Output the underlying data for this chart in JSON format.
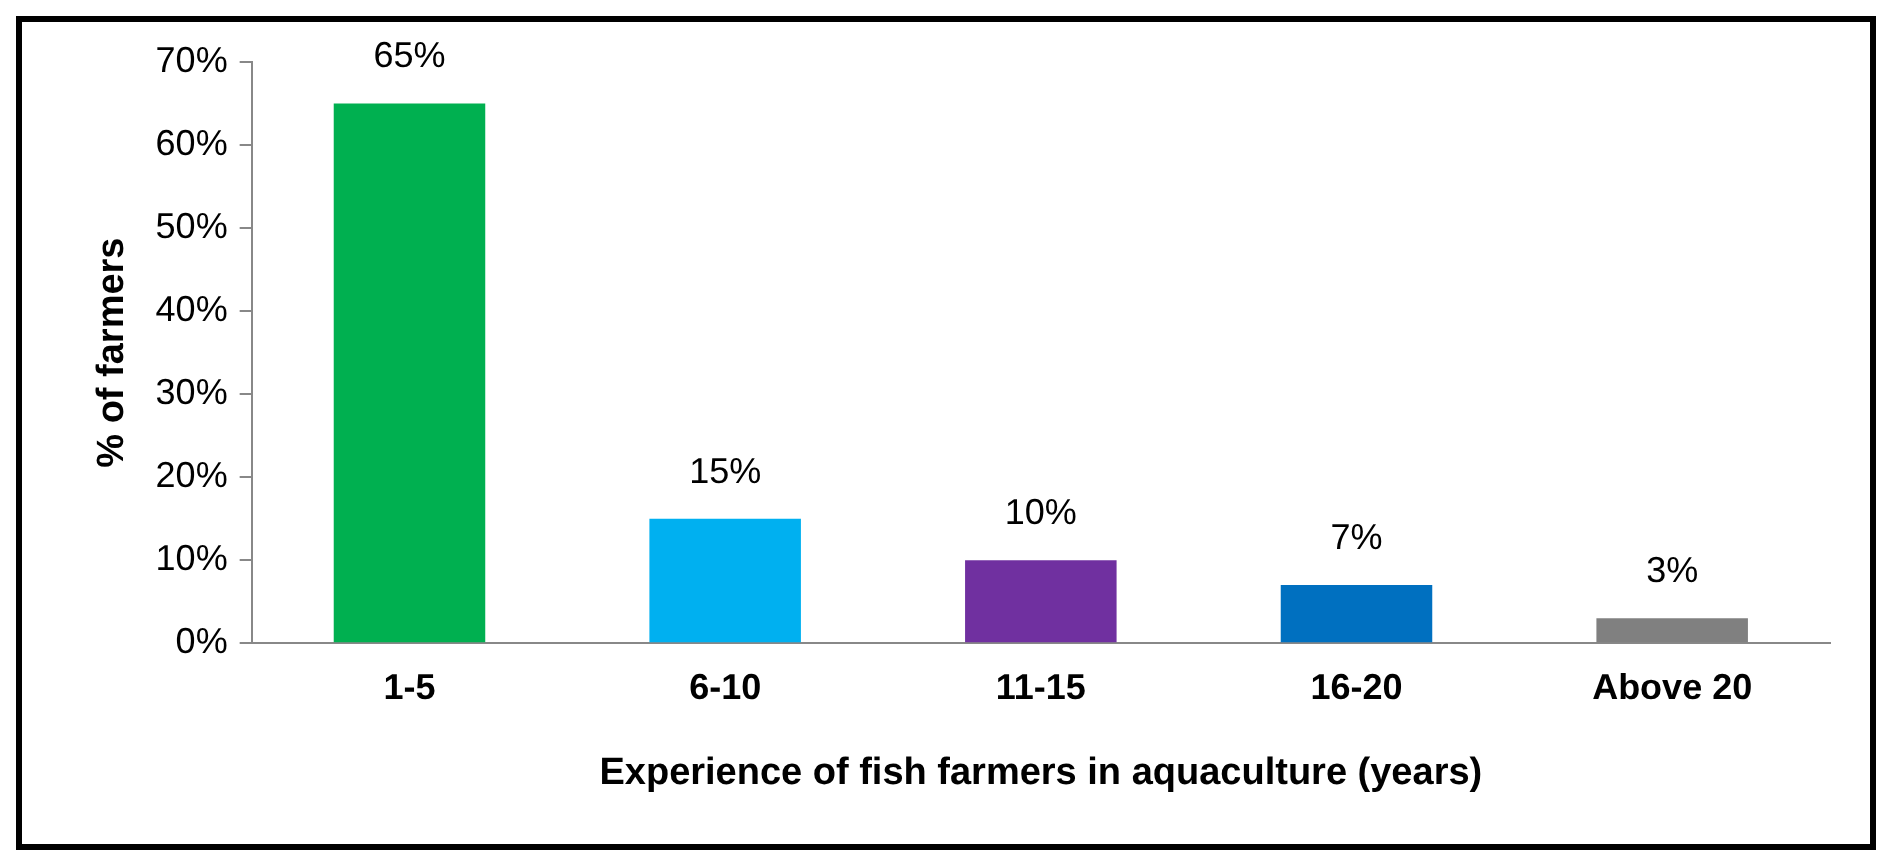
{
  "chart_data": {
    "type": "bar",
    "xlabel": "Experience of fish farmers in aquaculture (years)",
    "ylabel": "% of farmers",
    "categories": [
      "1-5",
      "6-10",
      "11-15",
      "16-20",
      "Above 20"
    ],
    "values": [
      65,
      15,
      10,
      7,
      3
    ],
    "colors": [
      "#00b050",
      "#00b0f0",
      "#7030a0",
      "#0070c0",
      "#808080"
    ],
    "value_labels": [
      "65%",
      "15%",
      "10%",
      "7%",
      "3%"
    ],
    "ylim": [
      0,
      70
    ],
    "yticks": [
      {
        "value": 0,
        "label": "0%"
      },
      {
        "value": 10,
        "label": "10%"
      },
      {
        "value": 20,
        "label": "20%"
      },
      {
        "value": 30,
        "label": "30%"
      },
      {
        "value": 40,
        "label": "40%"
      },
      {
        "value": 50,
        "label": "50%"
      },
      {
        "value": 60,
        "label": "60%"
      },
      {
        "value": 70,
        "label": "70%"
      }
    ],
    "grid": false,
    "legend": false
  }
}
